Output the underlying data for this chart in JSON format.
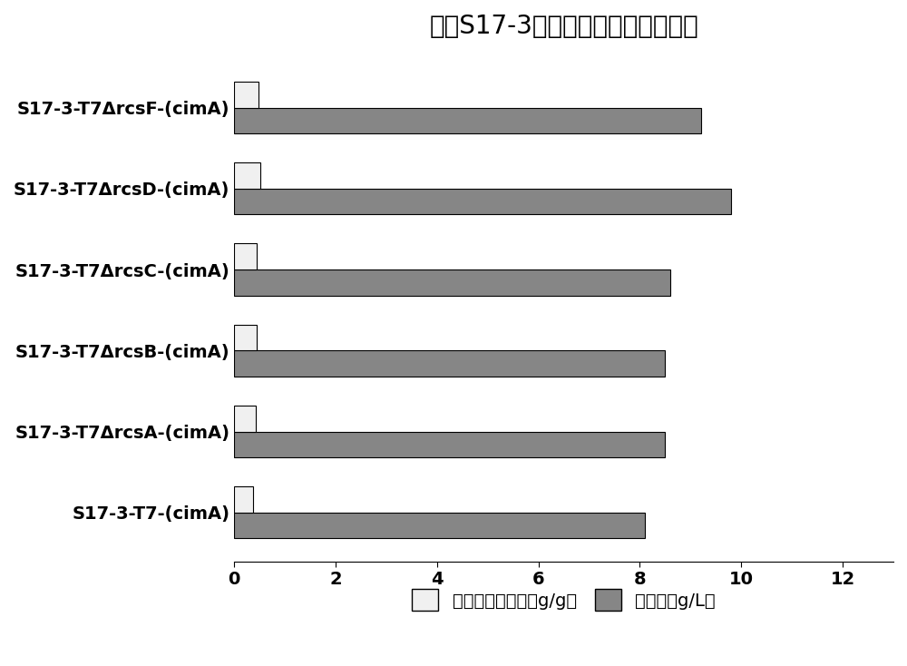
{
  "title": "不同S17-3突变株合成柠苹酸的水平",
  "categories": [
    "S17-3-T7-(cimA)",
    "S17-3-T7ΔrcsA-(cimA)",
    "S17-3-T7ΔrcsB-(cimA)",
    "S17-3-T7ΔrcsC-(cimA)",
    "S17-3-T7ΔrcsD-(cimA)",
    "S17-3-T7ΔrcsF-(cimA)"
  ],
  "glucose_conversion": [
    0.38,
    0.42,
    0.45,
    0.45,
    0.52,
    0.48
  ],
  "citramalic_acid": [
    8.1,
    8.5,
    8.5,
    8.6,
    9.8,
    9.2
  ],
  "bar_color_white": "#f0f0f0",
  "bar_color_gray": "#868686",
  "bar_edgecolor": "#000000",
  "legend_label1": "葡萄糖转化效率（g/g）",
  "legend_label2": "柠苹酸（g/L）",
  "xlim": [
    0,
    13
  ],
  "xticks": [
    0,
    2,
    4,
    6,
    8,
    10,
    12
  ],
  "title_fontsize": 20,
  "tick_fontsize": 14,
  "legend_fontsize": 14,
  "ytick_fontsize": 14,
  "background_color": "#ffffff"
}
